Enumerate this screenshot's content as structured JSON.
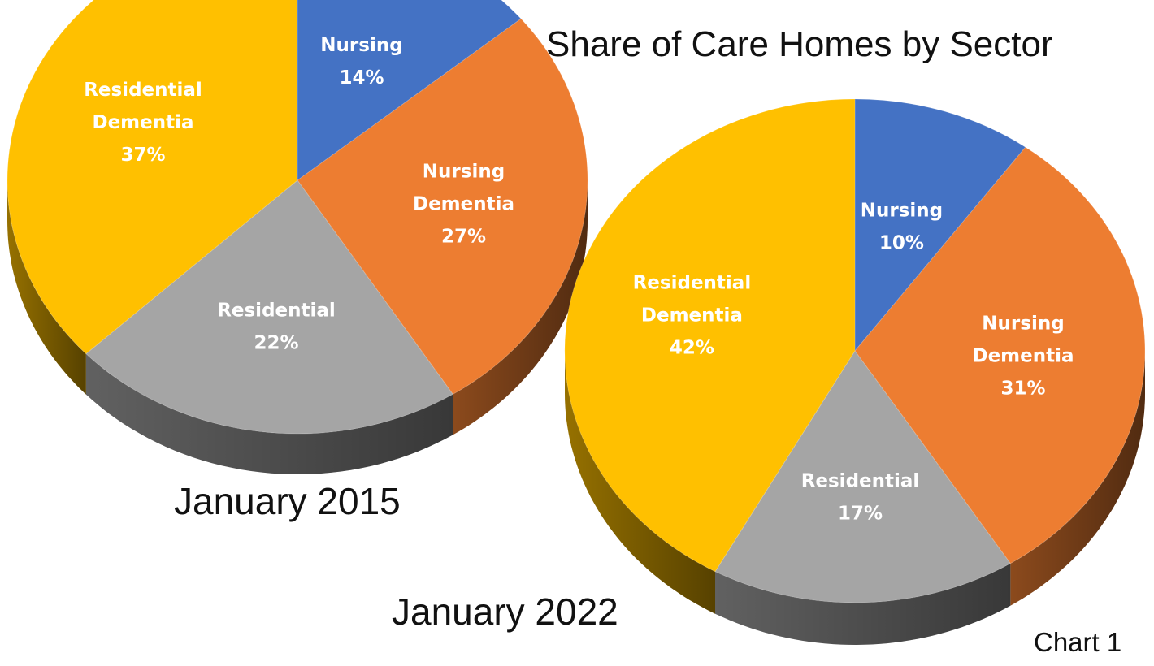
{
  "title": "Share of Care Homes by Sector",
  "footer": "Chart 1",
  "colors": {
    "Nursing": "#4472C4",
    "Nursing Dementia": "#ED7D31",
    "Residential": "#A5A5A5",
    "Residential Dementia": "#FFC000"
  },
  "chart_data": [
    {
      "type": "pie",
      "style": "3d",
      "label": "January 2015",
      "slices": [
        {
          "name": "Nursing",
          "value": 14,
          "label": "14%"
        },
        {
          "name": "Nursing Dementia",
          "value": 27,
          "label": "27%"
        },
        {
          "name": "Residential",
          "value": 22,
          "label": "22%"
        },
        {
          "name": "Residential Dementia",
          "value": 37,
          "label": "37%"
        }
      ]
    },
    {
      "type": "pie",
      "style": "3d",
      "label": "January 2022",
      "slices": [
        {
          "name": "Nursing",
          "value": 10,
          "label": "10%"
        },
        {
          "name": "Nursing Dementia",
          "value": 31,
          "label": "31%"
        },
        {
          "name": "Residential",
          "value": 17,
          "label": "17%"
        },
        {
          "name": "Residential Dementia",
          "value": 42,
          "label": "42%"
        }
      ]
    }
  ]
}
